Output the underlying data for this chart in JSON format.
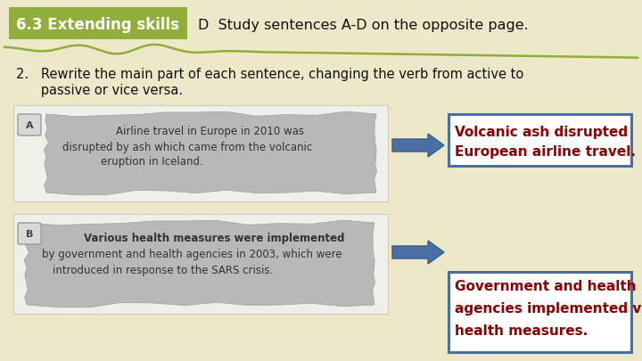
{
  "bg_color": "#ede8c8",
  "title_box_color": "#8fae3a",
  "title_text": "6.3 Extending skills",
  "title_text_color": "#ffffff",
  "header_text": "D  Study sentences A-D on the opposite page.",
  "header_text_color": "#111111",
  "instruction_line1": "2.   Rewrite the main part of each sentence, changing the verb from active to",
  "instruction_line2": "      passive or vice versa.",
  "instruction_text_color": "#111111",
  "wave_color": "#8fae3a",
  "panel_bg": "#f5f5f5",
  "panel_border": "#cccccc",
  "torn_color": "#b8b8b8",
  "torn_border": "#a0a0a0",
  "label_bg": "#d8d8d8",
  "label_border": "#999999",
  "panel_text_color": "#333333",
  "panel_a_label": "A",
  "panel_a_line1": "Airline travel in Europe in 2010 was",
  "panel_a_line2": "disrupted by ash which came from the volcanic",
  "panel_a_line3": "eruption in Iceland.",
  "panel_b_label": "B",
  "panel_b_line1": "Various health measures were implemented",
  "panel_b_line2": "by government and health agencies in 2003, which were",
  "panel_b_line3": "introduced in response to the SARS crisis.",
  "answer_box_bg": "#ffffff",
  "answer_box_border": "#4a6fa5",
  "answer_a_lines": [
    "Volcanic ash disrupted",
    "European airline travel."
  ],
  "answer_b_lines": [
    "Government and health",
    "agencies implemented various",
    "health measures."
  ],
  "answer_text_color": "#8b0000",
  "arrow_color": "#4a6fa5",
  "arrow_edge_color": "#3a5a8a"
}
